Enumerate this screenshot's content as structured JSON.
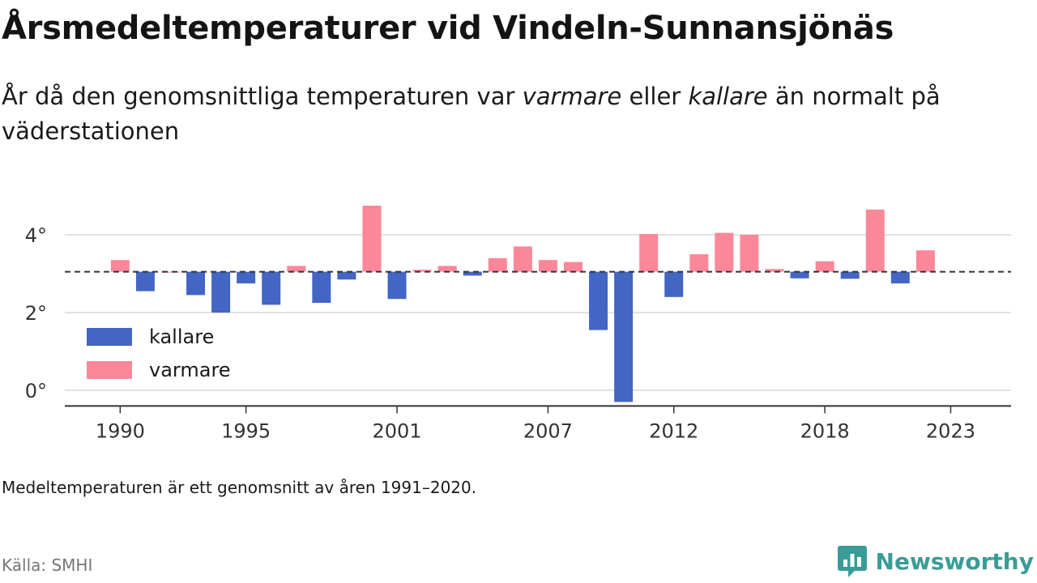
{
  "header": {
    "title": "Årsmedeltemperaturer vid Vindeln-Sunnansjönäs",
    "subtitle_parts": [
      "År då den genomsnittliga temperaturen var ",
      "varmare",
      " eller ",
      "kallare",
      " än normalt på väderstationen"
    ]
  },
  "footer": {
    "note": "Medeltemperaturen är ett genomsnitt av åren 1991–2020.",
    "source": "Källa: SMHI",
    "brand": "Newsworthy"
  },
  "colors": {
    "kallare": "#4365c4",
    "varmare": "#fb8799",
    "brand": "#3a9c96",
    "reference": "#333333",
    "grid": "#d9d9d9"
  },
  "chart_data": {
    "type": "bar",
    "reference_line": 3.05,
    "ylim": [
      -0.3,
      4.8
    ],
    "xlim": [
      1987.8,
      2025.4
    ],
    "y_ticks": [
      0,
      2,
      4
    ],
    "y_tick_labels": [
      "0°",
      "2°",
      "4°"
    ],
    "x_ticks": [
      1990,
      1995,
      2001,
      2007,
      2012,
      2018,
      2023
    ],
    "x_tick_labels": [
      "1990",
      "1995",
      "2001",
      "2007",
      "2012",
      "2018",
      "2023"
    ],
    "legend": {
      "position": "left",
      "entries": [
        "kallare",
        "varmare"
      ]
    },
    "years": [
      1990,
      1991,
      1992,
      1993,
      1994,
      1995,
      1996,
      1997,
      1998,
      1999,
      2000,
      2001,
      2002,
      2003,
      2004,
      2005,
      2006,
      2007,
      2008,
      2009,
      2010,
      2011,
      2012,
      2013,
      2014,
      2015,
      2016,
      2017,
      2018,
      2019,
      2020,
      2021,
      2022,
      2023
    ],
    "values": [
      3.35,
      2.55,
      3.05,
      2.45,
      2.0,
      2.75,
      2.2,
      3.2,
      2.25,
      2.85,
      4.75,
      2.35,
      3.1,
      3.2,
      2.95,
      3.4,
      3.7,
      3.35,
      3.3,
      1.55,
      -0.3,
      4.02,
      2.4,
      3.5,
      4.05,
      4.0,
      3.12,
      2.88,
      3.32,
      2.87,
      4.65,
      2.75,
      3.6,
      null
    ]
  }
}
